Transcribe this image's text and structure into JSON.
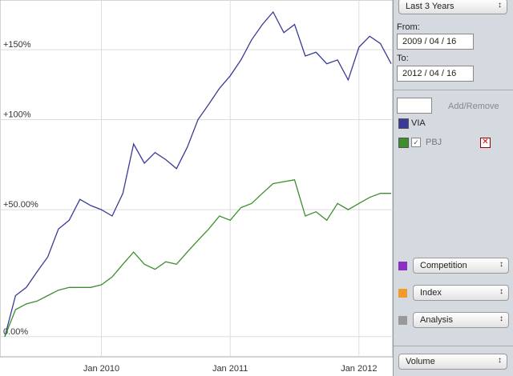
{
  "chart_data": {
    "type": "line",
    "log_scale": true,
    "grid": true,
    "x": [
      "2009-04",
      "2009-05",
      "2009-06",
      "2009-07",
      "2009-08",
      "2009-09",
      "2009-10",
      "2009-11",
      "2009-12",
      "2010-01",
      "2010-02",
      "2010-03",
      "2010-04",
      "2010-05",
      "2010-06",
      "2010-07",
      "2010-08",
      "2010-09",
      "2010-10",
      "2010-11",
      "2010-12",
      "2011-01",
      "2011-02",
      "2011-03",
      "2011-04",
      "2011-05",
      "2011-06",
      "2011-07",
      "2011-08",
      "2011-09",
      "2011-10",
      "2011-11",
      "2011-12",
      "2012-01",
      "2012-02",
      "2012-03",
      "2012-04"
    ],
    "series": [
      {
        "name": "VIA",
        "color": "#3a3a98",
        "values": [
          0,
          14,
          17,
          23,
          29,
          41,
          45,
          55,
          52,
          50,
          47,
          58,
          85,
          74,
          80,
          76,
          71,
          83,
          100,
          110,
          121,
          130,
          142,
          158,
          171,
          182,
          164,
          171,
          145,
          148,
          139,
          142,
          127,
          152,
          161,
          155,
          139
        ]
      },
      {
        "name": "PBJ",
        "color": "#3d8f2e",
        "values": [
          0,
          9,
          11,
          12,
          14,
          16,
          17,
          17,
          17,
          18,
          21,
          26,
          31,
          26,
          24,
          27,
          26,
          31,
          36,
          41,
          47,
          45,
          51,
          53,
          58,
          63,
          64,
          65,
          47,
          49,
          45,
          53,
          50,
          53,
          56,
          58,
          58
        ]
      }
    ],
    "xlim": [
      "2009-04",
      "2012-04"
    ],
    "xticks": [
      {
        "value": "2010-01",
        "label": "Jan 2010"
      },
      {
        "value": "2011-01",
        "label": "Jan 2011"
      },
      {
        "value": "2012-01",
        "label": "Jan 2012"
      }
    ],
    "ylim": [
      -6,
      193
    ],
    "yticks": [
      {
        "value": 0,
        "label": "0.00%"
      },
      {
        "value": 50,
        "label": "+50.00%"
      },
      {
        "value": 100,
        "label": "+100%"
      },
      {
        "value": 150,
        "label": "+150%"
      }
    ]
  },
  "panel": {
    "period": "Last 3 Years",
    "from_label": "From:",
    "from": "2009 / 04 / 16",
    "to_label": "To:",
    "to": "2012 / 04 / 16",
    "add_remove": "Add/Remove",
    "buttons": [
      "Competition",
      "Index",
      "Analysis"
    ],
    "volume": "Volume"
  }
}
